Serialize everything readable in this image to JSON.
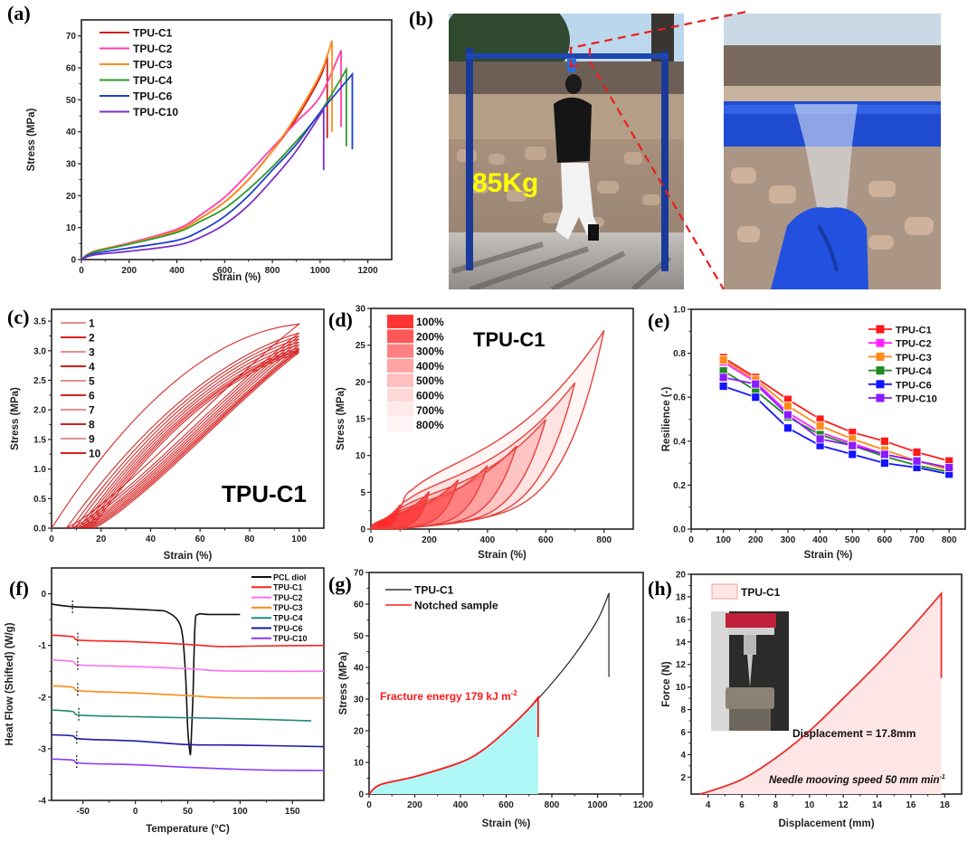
{
  "chart_data": [
    {
      "id": "a",
      "panel_label": "(a)",
      "type": "line",
      "xlabel": "Strain (%)",
      "ylabel": "Stress (MPa)",
      "xlim": [
        0,
        1300
      ],
      "ylim": [
        0,
        75
      ],
      "xticks": [
        0,
        200,
        400,
        600,
        800,
        1000,
        1200
      ],
      "yticks": [
        0,
        10,
        20,
        30,
        40,
        50,
        60,
        70
      ],
      "legend_position": "top-left",
      "series": [
        {
          "name": "TPU-C1",
          "color": "#cc1f1f",
          "x": [
            0,
            50,
            200,
            400,
            500,
            600,
            700,
            800,
            900,
            1000,
            1030,
            1030
          ],
          "y": [
            0,
            2.5,
            5,
            9,
            13,
            18,
            25,
            34,
            44,
            57,
            64,
            38
          ]
        },
        {
          "name": "TPU-C2",
          "color": "#ff3fa6",
          "x": [
            0,
            50,
            200,
            400,
            500,
            600,
            700,
            800,
            900,
            1000,
            1088,
            1088
          ],
          "y": [
            0,
            2.5,
            5.2,
            9.5,
            14,
            19.5,
            27,
            35,
            43,
            51,
            65.5,
            41.5
          ]
        },
        {
          "name": "TPU-C3",
          "color": "#ff8c1a",
          "x": [
            0,
            50,
            200,
            400,
            500,
            600,
            700,
            800,
            900,
            1000,
            1050,
            1050
          ],
          "y": [
            0,
            2.5,
            5,
            9,
            13,
            18,
            25,
            34,
            45,
            58,
            68.5,
            40
          ]
        },
        {
          "name": "TPU-C4",
          "color": "#2e9a2e",
          "x": [
            0,
            50,
            200,
            400,
            500,
            600,
            700,
            800,
            900,
            1000,
            1110,
            1110
          ],
          "y": [
            0,
            2.3,
            4.8,
            8.5,
            12,
            16,
            22,
            29,
            37,
            46,
            59.5,
            35.5
          ]
        },
        {
          "name": "TPU-C6",
          "color": "#1f3fcc",
          "x": [
            0,
            50,
            200,
            400,
            500,
            600,
            700,
            800,
            900,
            1000,
            1135,
            1135
          ],
          "y": [
            0,
            1.8,
            3.6,
            6,
            9,
            13.5,
            20,
            28,
            36,
            46,
            58,
            34.5
          ]
        },
        {
          "name": "TPU-C10",
          "color": "#7a2fc8",
          "x": [
            0,
            50,
            200,
            400,
            500,
            600,
            700,
            800,
            900,
            1015,
            1015
          ],
          "y": [
            0,
            1.4,
            2.6,
            4.5,
            7,
            11,
            17,
            25,
            34,
            47,
            28
          ]
        }
      ]
    },
    {
      "id": "c",
      "panel_label": "(c)",
      "type": "line",
      "annotation": "TPU-C1",
      "xlabel": "Strain (%)",
      "ylabel": "Stress (MPa)",
      "xlim": [
        0,
        110
      ],
      "ylim": [
        0,
        3.7
      ],
      "xticks": [
        0,
        20,
        40,
        60,
        80,
        100
      ],
      "yticks": [
        "0.0",
        "0.5",
        "1.0",
        "1.5",
        "2.0",
        "2.5",
        "3.0",
        "3.5"
      ],
      "legend_position": "top-left",
      "cycles": [
        {
          "name": "1",
          "start": 0,
          "peak": 3.45
        },
        {
          "name": "2",
          "start": 6,
          "peak": 3.3
        },
        {
          "name": "3",
          "start": 8,
          "peak": 3.25
        },
        {
          "name": "4",
          "start": 9.5,
          "peak": 3.2
        },
        {
          "name": "5",
          "start": 11,
          "peak": 3.15
        },
        {
          "name": "6",
          "start": 12,
          "peak": 3.1
        },
        {
          "name": "7",
          "start": 13,
          "peak": 3.05
        },
        {
          "name": "8",
          "start": 14,
          "peak": 3.02
        },
        {
          "name": "9",
          "start": 15,
          "peak": 3.0
        },
        {
          "name": "10",
          "start": 16,
          "peak": 2.97
        }
      ],
      "color": "#d42020"
    },
    {
      "id": "d",
      "panel_label": "(d)",
      "type": "area",
      "annotation": "TPU-C1",
      "xlabel": "Strain (%)",
      "ylabel": "Stress (MPa)",
      "xlim": [
        0,
        900
      ],
      "ylim": [
        0,
        30
      ],
      "xticks": [
        0,
        200,
        400,
        600,
        800
      ],
      "yticks": [
        0,
        5,
        10,
        15,
        20,
        25,
        30
      ],
      "legend_position": "top-left",
      "loops": [
        {
          "name": "100%",
          "max_strain": 100,
          "peak": 3.3,
          "residual": 20,
          "fill": "#ff2a2a",
          "opacity": 0.95
        },
        {
          "name": "200%",
          "max_strain": 200,
          "peak": 5.1,
          "residual": 35,
          "fill": "#ff3b3b",
          "opacity": 0.85
        },
        {
          "name": "300%",
          "max_strain": 300,
          "peak": 6.7,
          "residual": 45,
          "fill": "#ff5555",
          "opacity": 0.75
        },
        {
          "name": "400%",
          "max_strain": 400,
          "peak": 8.6,
          "residual": 55,
          "fill": "#ff6b6b",
          "opacity": 0.62
        },
        {
          "name": "500%",
          "max_strain": 500,
          "peak": 11.3,
          "residual": 65,
          "fill": "#ff8080",
          "opacity": 0.5
        },
        {
          "name": "600%",
          "max_strain": 600,
          "peak": 14.9,
          "residual": 75,
          "fill": "#ff9a9a",
          "opacity": 0.4
        },
        {
          "name": "700%",
          "max_strain": 700,
          "peak": 19.9,
          "residual": 85,
          "fill": "#ffb5b5",
          "opacity": 0.3
        },
        {
          "name": "800%",
          "max_strain": 800,
          "peak": 27,
          "residual": 95,
          "fill": "#ffd6d6",
          "opacity": 0.25
        }
      ],
      "stroke": "#e8403a"
    },
    {
      "id": "e",
      "panel_label": "(e)",
      "type": "line",
      "xlabel": "Strain (%)",
      "ylabel": "Resilience (-)",
      "xlim": [
        0,
        850
      ],
      "ylim": [
        0,
        1.0
      ],
      "xticks": [
        0,
        100,
        200,
        300,
        400,
        500,
        600,
        700,
        800
      ],
      "yticks": [
        "0.0",
        "0.2",
        "0.4",
        "0.6",
        "0.8",
        "1.0"
      ],
      "legend_position": "top-right",
      "x": [
        100,
        200,
        300,
        400,
        500,
        600,
        700,
        800
      ],
      "series": [
        {
          "name": "TPU-C1",
          "color": "#ff1a1a",
          "values": [
            0.78,
            0.69,
            0.59,
            0.5,
            0.44,
            0.4,
            0.35,
            0.31
          ]
        },
        {
          "name": "TPU-C2",
          "color": "#ff22ff",
          "values": [
            0.76,
            0.67,
            0.53,
            0.44,
            0.39,
            0.34,
            0.31,
            0.27
          ]
        },
        {
          "name": "TPU-C3",
          "color": "#ff8a1a",
          "values": [
            0.77,
            0.68,
            0.56,
            0.47,
            0.41,
            0.36,
            0.31,
            0.27
          ]
        },
        {
          "name": "TPU-C4",
          "color": "#1f8a1f",
          "values": [
            0.72,
            0.63,
            0.51,
            0.43,
            0.38,
            0.33,
            0.29,
            0.26
          ]
        },
        {
          "name": "TPU-C6",
          "color": "#1414ff",
          "values": [
            0.65,
            0.6,
            0.46,
            0.38,
            0.34,
            0.3,
            0.28,
            0.25
          ]
        },
        {
          "name": "TPU-C10",
          "color": "#8a1aff",
          "values": [
            0.69,
            0.66,
            0.52,
            0.41,
            0.38,
            0.34,
            0.31,
            0.28
          ]
        }
      ]
    },
    {
      "id": "f",
      "panel_label": "(f)",
      "type": "line",
      "xlabel": "Temperature (°C)",
      "ylabel": "Heat Flow (Shifted) (W/g)",
      "xlim": [
        -80,
        180
      ],
      "ylim": [
        -4,
        0.5
      ],
      "xticks": [
        -50,
        0,
        50,
        100,
        150
      ],
      "yticks": [
        -4,
        -3,
        -2,
        -1,
        0
      ],
      "legend_position": "top-right",
      "series": [
        {
          "name": "PCL diol",
          "color": "#111111",
          "x": [
            -80,
            -60,
            -20,
            20,
            30,
            40,
            45,
            48,
            50,
            52,
            53,
            55,
            57,
            60,
            70,
            100
          ],
          "y": [
            -0.2,
            -0.25,
            -0.28,
            -0.32,
            -0.35,
            -0.5,
            -0.8,
            -1.6,
            -2.6,
            -3.05,
            -3.0,
            -2.0,
            -0.6,
            -0.4,
            -0.4,
            -0.4
          ],
          "tg": -60
        },
        {
          "name": "TPU-C1",
          "color": "#ff2020",
          "x": [
            -80,
            -60,
            -52,
            0,
            50,
            80,
            120,
            180
          ],
          "y": [
            -0.8,
            -0.83,
            -0.9,
            -0.93,
            -0.98,
            -1.02,
            -1.01,
            -1.0
          ],
          "tg": -55
        },
        {
          "name": "TPU-C2",
          "color": "#ff6ef0",
          "x": [
            -80,
            -60,
            -52,
            0,
            50,
            80,
            120,
            180
          ],
          "y": [
            -1.28,
            -1.31,
            -1.38,
            -1.41,
            -1.45,
            -1.49,
            -1.5,
            -1.5
          ],
          "tg": -55
        },
        {
          "name": "TPU-C3",
          "color": "#ff8a1a",
          "x": [
            -80,
            -60,
            -52,
            0,
            50,
            80,
            120,
            180
          ],
          "y": [
            -1.78,
            -1.81,
            -1.88,
            -1.92,
            -1.97,
            -2.01,
            -2.02,
            -2.02
          ],
          "tg": -55
        },
        {
          "name": "TPU-C4",
          "color": "#1f8a7a",
          "x": [
            -80,
            -60,
            -52,
            0,
            50,
            100,
            168
          ],
          "y": [
            -2.25,
            -2.28,
            -2.35,
            -2.38,
            -2.4,
            -2.42,
            -2.46
          ],
          "tg": -54
        },
        {
          "name": "TPU-C6",
          "color": "#1a1aa8",
          "x": [
            -80,
            -60,
            -52,
            0,
            50,
            100,
            180
          ],
          "y": [
            -2.73,
            -2.75,
            -2.81,
            -2.85,
            -2.92,
            -2.93,
            -2.96
          ],
          "tg": -56
        },
        {
          "name": "TPU-C10",
          "color": "#8a3aff",
          "x": [
            -80,
            -60,
            -52,
            0,
            50,
            120,
            180
          ],
          "y": [
            -3.2,
            -3.22,
            -3.28,
            -3.31,
            -3.36,
            -3.41,
            -3.42
          ],
          "tg": -56
        }
      ]
    },
    {
      "id": "g",
      "panel_label": "(g)",
      "type": "line",
      "xlabel": "Strain (%)",
      "ylabel": "Stress (MPa)",
      "xlim": [
        0,
        1200
      ],
      "ylim": [
        0,
        70
      ],
      "xticks": [
        0,
        200,
        400,
        600,
        800,
        1000,
        1200
      ],
      "yticks": [
        0,
        10,
        20,
        30,
        40,
        50,
        60,
        70
      ],
      "legend_position": "top-left",
      "annotation": "Fracture energy 179 kJ m",
      "annotation_sup": "-2",
      "annotation_color": "#ff1a1a",
      "fill_color": "#b0f7f7",
      "series": [
        {
          "name": "TPU-C1",
          "color": "#333333",
          "x": [
            0,
            50,
            200,
            400,
            500,
            600,
            700,
            800,
            900,
            1000,
            1050,
            1050
          ],
          "y": [
            0,
            3,
            5.5,
            10,
            14,
            20,
            27,
            35,
            44,
            55,
            63.5,
            37
          ]
        },
        {
          "name": "Notched sample",
          "color": "#ff1a1a",
          "x": [
            0,
            50,
            200,
            400,
            500,
            600,
            700,
            740,
            740
          ],
          "y": [
            0,
            3,
            5.5,
            10,
            14,
            20,
            27,
            30.5,
            18
          ]
        }
      ]
    },
    {
      "id": "h",
      "panel_label": "(h)",
      "type": "area",
      "xlabel": "Displacement (mm)",
      "ylabel": "Force (N)",
      "xlim": [
        3,
        19
      ],
      "ylim": [
        0.5,
        20
      ],
      "xticks": [
        4,
        6,
        8,
        10,
        12,
        14,
        16,
        18
      ],
      "yticks": [
        2,
        4,
        6,
        8,
        10,
        12,
        14,
        16,
        18,
        20
      ],
      "legend_position": "top-left",
      "annotation_1": "Displacement = 17.8mm",
      "annotation_2": "Needle mooving speed 50 mm min",
      "annotation_2_sup": "-1",
      "series": [
        {
          "name": "TPU-C1",
          "color": "#e83030",
          "fill": "#ffe6e6",
          "x": [
            3.5,
            4,
            6,
            8,
            10,
            12,
            14,
            16,
            17.8,
            17.8
          ],
          "y": [
            0.5,
            0.7,
            1.8,
            3.7,
            6.1,
            9.0,
            12.0,
            15.2,
            18.3,
            10.8
          ]
        }
      ]
    }
  ],
  "panel_b": {
    "panel_label": "(b)",
    "weight_label": "85Kg",
    "weight_color": "#ffff00",
    "photo_left": "person-hanging-from-pull-up-bar",
    "photo_right": "tpu-film-wrapped-around-bar-held-by-gloved-hand"
  }
}
